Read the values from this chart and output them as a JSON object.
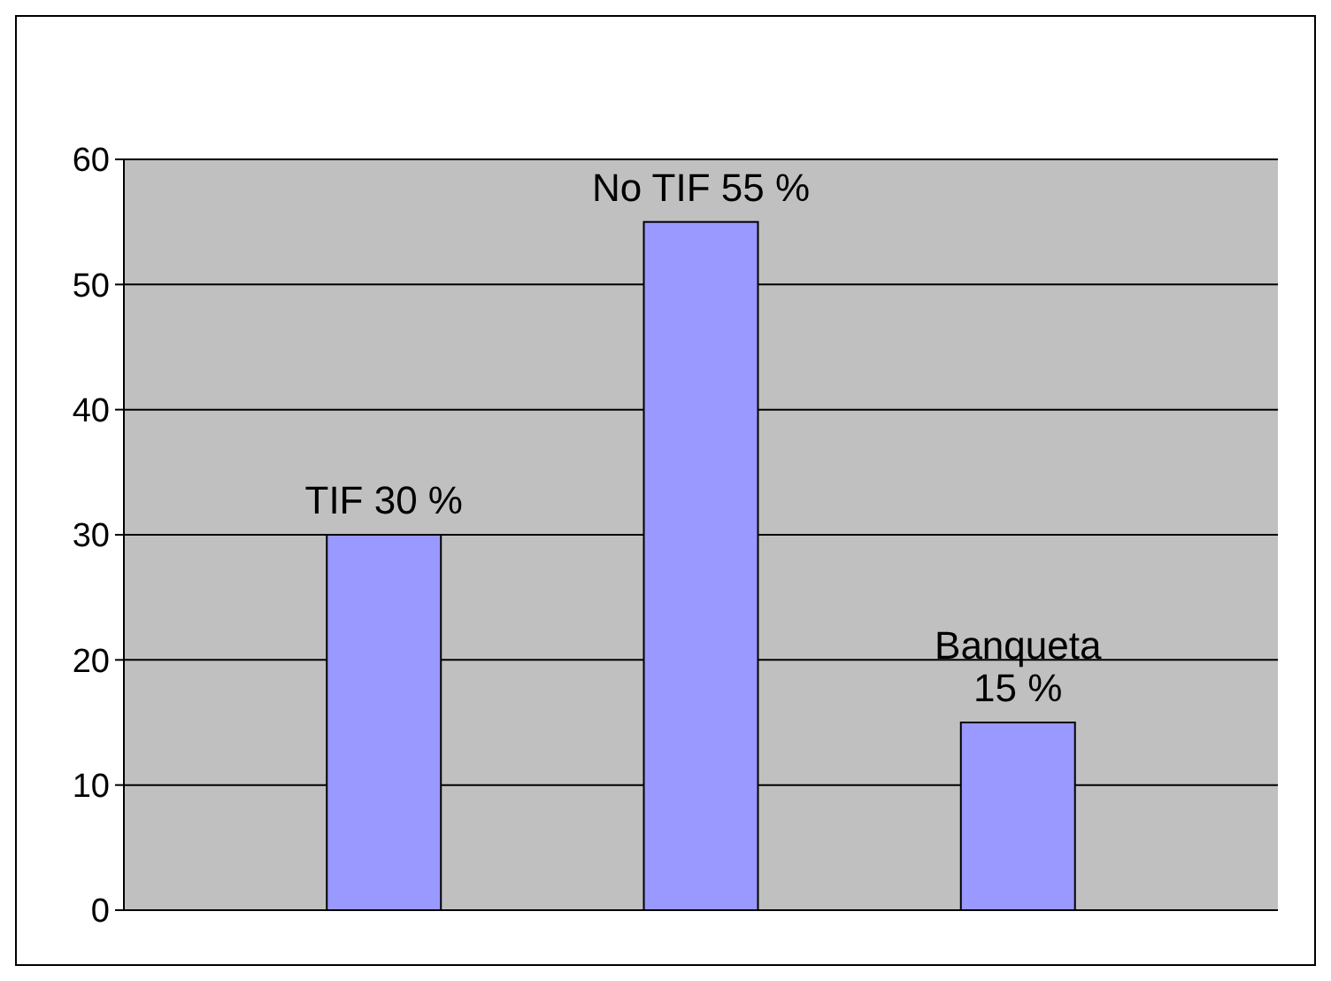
{
  "chart_data": {
    "type": "bar",
    "categories": [
      null,
      null,
      null
    ],
    "values": [
      30,
      55,
      15
    ],
    "value_labels": [
      "TIF 30 %",
      "No TIF 55 %",
      "Banqueta\n15 %"
    ],
    "color": "#9999ff",
    "ylim": [
      0,
      60
    ],
    "yticks": [
      0,
      10,
      20,
      30,
      40,
      50,
      60
    ],
    "grid": "y"
  }
}
